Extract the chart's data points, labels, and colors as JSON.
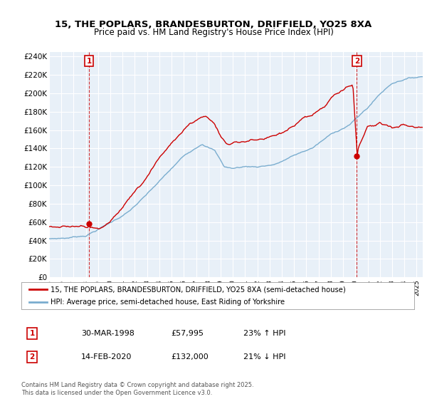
{
  "title_line1": "15, THE POPLARS, BRANDESBURTON, DRIFFIELD, YO25 8XA",
  "title_line2": "Price paid vs. HM Land Registry's House Price Index (HPI)",
  "ylim": [
    0,
    245000
  ],
  "yticks": [
    0,
    20000,
    40000,
    60000,
    80000,
    100000,
    120000,
    140000,
    160000,
    180000,
    200000,
    220000,
    240000
  ],
  "ytick_labels": [
    "£0",
    "£20K",
    "£40K",
    "£60K",
    "£80K",
    "£100K",
    "£120K",
    "£140K",
    "£160K",
    "£180K",
    "£200K",
    "£220K",
    "£240K"
  ],
  "legend_label_red": "15, THE POPLARS, BRANDESBURTON, DRIFFIELD, YO25 8XA (semi-detached house)",
  "legend_label_blue": "HPI: Average price, semi-detached house, East Riding of Yorkshire",
  "annotation1_label": "1",
  "annotation1_date": "30-MAR-1998",
  "annotation1_price": "£57,995",
  "annotation1_hpi": "23% ↑ HPI",
  "annotation2_label": "2",
  "annotation2_date": "14-FEB-2020",
  "annotation2_price": "£132,000",
  "annotation2_hpi": "21% ↓ HPI",
  "footnote": "Contains HM Land Registry data © Crown copyright and database right 2025.\nThis data is licensed under the Open Government Licence v3.0.",
  "red_color": "#cc0000",
  "blue_color": "#7aadcf",
  "chart_bg": "#e8f0f8",
  "bg_color": "#ffffff",
  "grid_color": "#ffffff",
  "point1_x": 1998.25,
  "point1_y": 57995,
  "point2_x": 2020.12,
  "point2_y": 132000,
  "xlim_start": 1995.0,
  "xlim_end": 2025.5
}
